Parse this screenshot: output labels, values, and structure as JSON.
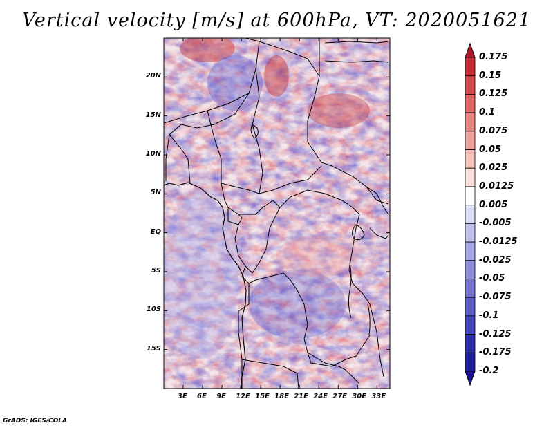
{
  "title": "Vertical velocity [m/s] at 600hPa, VT: 2020051621",
  "credit": "GrADS: IGES/COLA",
  "map": {
    "lon_range": [
      0,
      35
    ],
    "lat_range": [
      -20,
      25
    ],
    "lon_ticks": [
      "3E",
      "6E",
      "9E",
      "12E",
      "15E",
      "18E",
      "21E",
      "24E",
      "27E",
      "30E",
      "33E"
    ],
    "lon_tick_values": [
      3,
      6,
      9,
      12,
      15,
      18,
      21,
      24,
      27,
      30,
      33
    ],
    "lat_ticks": [
      "20N",
      "15N",
      "10N",
      "5N",
      "EQ",
      "5S",
      "10S",
      "15S"
    ],
    "lat_tick_values": [
      20,
      15,
      10,
      5,
      0,
      -5,
      -10,
      -15
    ]
  },
  "colorbar": {
    "levels": [
      "0.175",
      "0.15",
      "0.125",
      "0.1",
      "0.075",
      "0.05",
      "0.025",
      "0.0125",
      "0.005",
      "-0.005",
      "-0.0125",
      "-0.025",
      "-0.05",
      "-0.075",
      "-0.1",
      "-0.125",
      "-0.175",
      "-0.2"
    ],
    "colors": [
      "#b2182b",
      "#c62f35",
      "#d44c4c",
      "#e06a68",
      "#e98784",
      "#f2a5a0",
      "#f8c3bd",
      "#fce0db",
      "#ffffff",
      "#dcdcf4",
      "#c3c3ee",
      "#a8a8e6",
      "#8f8fdc",
      "#7676d0",
      "#5e5ec4",
      "#4646b6",
      "#3030a6",
      "#20209a",
      "#1a1090"
    ]
  },
  "colors": {
    "positive_strong": "#c0202a",
    "negative_strong": "#3030b0",
    "border": "#000000"
  }
}
